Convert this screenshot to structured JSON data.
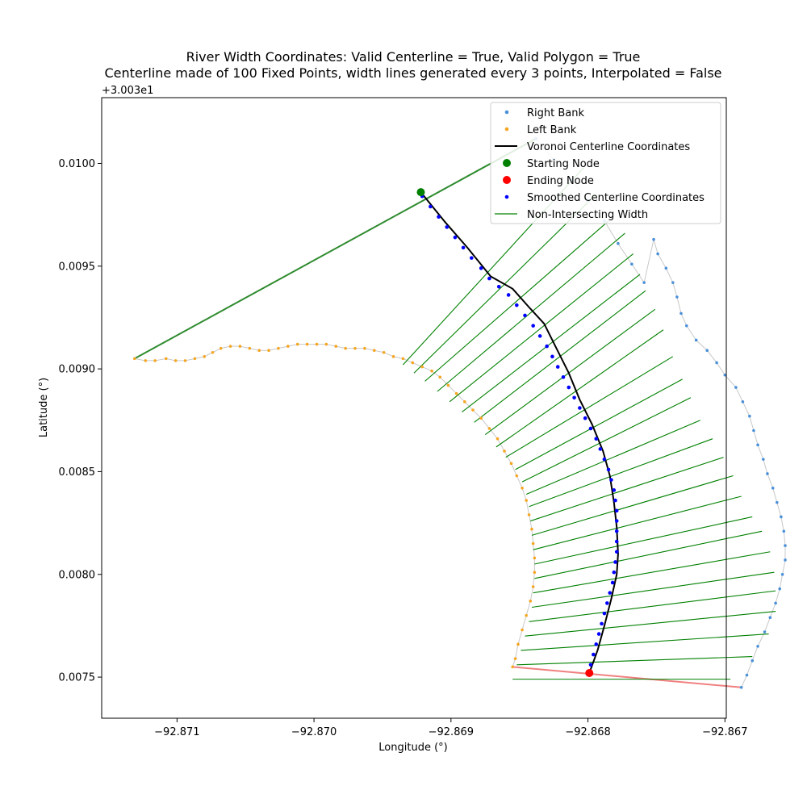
{
  "chart_data": {
    "type": "scatter",
    "title_line1": "River Width Coordinates: Valid Centerline = True, Valid Polygon = True",
    "title_line2": "Centerline made of 100 Fixed Points, width lines generated every 3 points, Interpolated = False",
    "xlabel": "Longitude (°)",
    "ylabel": "Latitude (°)",
    "y_offset_label": "+3.003e1",
    "xlim": [
      -92.87155,
      -92.86699
    ],
    "ylim": [
      0.0073,
      0.01032
    ],
    "xticks": [
      {
        "value": -92.871,
        "label": "−92.871"
      },
      {
        "value": -92.87,
        "label": "−92.870"
      },
      {
        "value": -92.869,
        "label": "−92.869"
      },
      {
        "value": -92.868,
        "label": "−92.868"
      },
      {
        "value": -92.867,
        "label": "−92.867"
      }
    ],
    "yticks": [
      {
        "value": 0.0075,
        "label": "0.0075"
      },
      {
        "value": 0.008,
        "label": "0.0080"
      },
      {
        "value": 0.0085,
        "label": "0.0085"
      },
      {
        "value": 0.009,
        "label": "0.0090"
      },
      {
        "value": 0.0095,
        "label": "0.0095"
      },
      {
        "value": 0.01,
        "label": "0.0100"
      }
    ],
    "grid": false,
    "legend_position": "top-right",
    "colors": {
      "right_bank": "#4a90d9",
      "left_bank": "#f5a623",
      "centerline": "#000000",
      "start_node": "#008000",
      "end_node": "#ff0000",
      "smoothed": "#0000ff",
      "width_line": "#008000",
      "bank_outline": "#c8c8c8",
      "top_closure": "#2e8b2e",
      "bottom_closure": "#f08080"
    },
    "legend": [
      {
        "key": "right_bank",
        "label": "Right Bank",
        "marker": "dot-small"
      },
      {
        "key": "left_bank",
        "label": "Left Bank",
        "marker": "dot-small"
      },
      {
        "key": "centerline",
        "label": "Voronoi Centerline Coordinates",
        "marker": "line-thick"
      },
      {
        "key": "start_node",
        "label": "Starting Node",
        "marker": "dot-large"
      },
      {
        "key": "end_node",
        "label": "Ending Node",
        "marker": "dot-large"
      },
      {
        "key": "smoothed",
        "label": "Smoothed Centerline Coordinates",
        "marker": "dot-small"
      },
      {
        "key": "width_line",
        "label": "Non-Intersecting Width",
        "marker": "line-thin"
      }
    ],
    "right_bank": [
      [
        -92.86838,
        0.01012
      ],
      [
        -92.86825,
        0.01002
      ],
      [
        -92.86812,
        0.00992
      ],
      [
        -92.868,
        0.00982
      ],
      [
        -92.86788,
        0.00972
      ],
      [
        -92.86778,
        0.00961
      ],
      [
        -92.86768,
        0.00951
      ],
      [
        -92.86759,
        0.00942
      ],
      [
        -92.86752,
        0.00963
      ],
      [
        -92.86749,
        0.00956
      ],
      [
        -92.86743,
        0.00949
      ],
      [
        -92.86738,
        0.00942
      ],
      [
        -92.86735,
        0.00935
      ],
      [
        -92.86732,
        0.00927
      ],
      [
        -92.86728,
        0.00921
      ],
      [
        -92.86721,
        0.00914
      ],
      [
        -92.86713,
        0.00909
      ],
      [
        -92.86706,
        0.00903
      ],
      [
        -92.867,
        0.00897
      ],
      [
        -92.86692,
        0.00891
      ],
      [
        -92.86687,
        0.00884
      ],
      [
        -92.86682,
        0.00877
      ],
      [
        -92.86679,
        0.0087
      ],
      [
        -92.86676,
        0.00863
      ],
      [
        -92.86672,
        0.00856
      ],
      [
        -92.86669,
        0.00849
      ],
      [
        -92.86665,
        0.00842
      ],
      [
        -92.86662,
        0.00835
      ],
      [
        -92.86659,
        0.00828
      ],
      [
        -92.86657,
        0.00821
      ],
      [
        -92.86656,
        0.00814
      ],
      [
        -92.86656,
        0.00807
      ],
      [
        -92.86658,
        0.008
      ],
      [
        -92.8666,
        0.00793
      ],
      [
        -92.86663,
        0.00786
      ],
      [
        -92.86667,
        0.00779
      ],
      [
        -92.86671,
        0.00772
      ],
      [
        -92.86676,
        0.00765
      ],
      [
        -92.8668,
        0.00758
      ],
      [
        -92.86684,
        0.00751
      ],
      [
        -92.86688,
        0.00745
      ]
    ],
    "left_bank": [
      [
        -92.87131,
        0.00905
      ],
      [
        -92.87123,
        0.00904
      ],
      [
        -92.87116,
        0.00904
      ],
      [
        -92.87108,
        0.00905
      ],
      [
        -92.87101,
        0.00904
      ],
      [
        -92.87094,
        0.00904
      ],
      [
        -92.87087,
        0.00905
      ],
      [
        -92.8708,
        0.00906
      ],
      [
        -92.87074,
        0.00908
      ],
      [
        -92.87068,
        0.0091
      ],
      [
        -92.87061,
        0.00911
      ],
      [
        -92.87054,
        0.00911
      ],
      [
        -92.87047,
        0.0091
      ],
      [
        -92.8704,
        0.00909
      ],
      [
        -92.87033,
        0.00909
      ],
      [
        -92.87026,
        0.0091
      ],
      [
        -92.87019,
        0.00911
      ],
      [
        -92.87012,
        0.00912
      ],
      [
        -92.87005,
        0.00912
      ],
      [
        -92.86998,
        0.00912
      ],
      [
        -92.86991,
        0.00912
      ],
      [
        -92.86984,
        0.00911
      ],
      [
        -92.86977,
        0.0091
      ],
      [
        -92.8697,
        0.0091
      ],
      [
        -92.86963,
        0.0091
      ],
      [
        -92.86956,
        0.00909
      ],
      [
        -92.86949,
        0.00908
      ],
      [
        -92.86942,
        0.00906
      ],
      [
        -92.86935,
        0.00905
      ],
      [
        -92.86928,
        0.00903
      ],
      [
        -92.86921,
        0.00901
      ],
      [
        -92.86914,
        0.00899
      ],
      [
        -92.86908,
        0.00896
      ],
      [
        -92.86902,
        0.00892
      ],
      [
        -92.86896,
        0.00888
      ],
      [
        -92.8689,
        0.00884
      ],
      [
        -92.86884,
        0.0088
      ],
      [
        -92.86878,
        0.00876
      ],
      [
        -92.86872,
        0.00871
      ],
      [
        -92.86866,
        0.00866
      ],
      [
        -92.86861,
        0.0086
      ],
      [
        -92.86856,
        0.00854
      ],
      [
        -92.86852,
        0.00848
      ],
      [
        -92.86848,
        0.00842
      ],
      [
        -92.86845,
        0.00836
      ],
      [
        -92.86843,
        0.00829
      ],
      [
        -92.86841,
        0.00822
      ],
      [
        -92.8684,
        0.00815
      ],
      [
        -92.86839,
        0.00808
      ],
      [
        -92.86839,
        0.00801
      ],
      [
        -92.8684,
        0.00794
      ],
      [
        -92.86842,
        0.00787
      ],
      [
        -92.86845,
        0.0078
      ],
      [
        -92.86848,
        0.00773
      ],
      [
        -92.86851,
        0.00766
      ],
      [
        -92.86853,
        0.00759
      ],
      [
        -92.86855,
        0.00755
      ]
    ],
    "centerline": [
      [
        -92.86922,
        0.00986
      ],
      [
        -92.86905,
        0.00972
      ],
      [
        -92.86888,
        0.00959
      ],
      [
        -92.86871,
        0.00945
      ],
      [
        -92.86855,
        0.00939
      ],
      [
        -92.86843,
        0.0093
      ],
      [
        -92.86832,
        0.00922
      ],
      [
        -92.86823,
        0.0091
      ],
      [
        -92.86814,
        0.00898
      ],
      [
        -92.86806,
        0.00885
      ],
      [
        -92.86797,
        0.00873
      ],
      [
        -92.86789,
        0.0086
      ],
      [
        -92.86784,
        0.00848
      ],
      [
        -92.86781,
        0.00835
      ],
      [
        -92.86779,
        0.00823
      ],
      [
        -92.86778,
        0.0081
      ],
      [
        -92.86779,
        0.008
      ],
      [
        -92.86783,
        0.00788
      ],
      [
        -92.86788,
        0.00775
      ],
      [
        -92.86793,
        0.00763
      ],
      [
        -92.86799,
        0.00752
      ]
    ],
    "start_node": [
      -92.86922,
      0.00986
    ],
    "end_node": [
      -92.86799,
      0.00752
    ],
    "smoothed": [
      [
        -92.86921,
        0.00984
      ],
      [
        -92.86915,
        0.00979
      ],
      [
        -92.86909,
        0.00974
      ],
      [
        -92.86903,
        0.00969
      ],
      [
        -92.86897,
        0.00964
      ],
      [
        -92.86891,
        0.00959
      ],
      [
        -92.86885,
        0.00954
      ],
      [
        -92.86878,
        0.00949
      ],
      [
        -92.86872,
        0.00944
      ],
      [
        -92.86865,
        0.0094
      ],
      [
        -92.86858,
        0.00936
      ],
      [
        -92.86852,
        0.00931
      ],
      [
        -92.86846,
        0.00926
      ],
      [
        -92.8684,
        0.00921
      ],
      [
        -92.86835,
        0.00916
      ],
      [
        -92.8683,
        0.00911
      ],
      [
        -92.86826,
        0.00906
      ],
      [
        -92.86822,
        0.00901
      ],
      [
        -92.86818,
        0.00896
      ],
      [
        -92.86814,
        0.00891
      ],
      [
        -92.8681,
        0.00886
      ],
      [
        -92.86806,
        0.00881
      ],
      [
        -92.86802,
        0.00876
      ],
      [
        -92.86798,
        0.00871
      ],
      [
        -92.86794,
        0.00866
      ],
      [
        -92.86791,
        0.00861
      ],
      [
        -92.86788,
        0.00856
      ],
      [
        -92.86785,
        0.00851
      ],
      [
        -92.86783,
        0.00846
      ],
      [
        -92.86781,
        0.00841
      ],
      [
        -92.8678,
        0.00836
      ],
      [
        -92.86779,
        0.00831
      ],
      [
        -92.86779,
        0.00826
      ],
      [
        -92.86779,
        0.00821
      ],
      [
        -92.86779,
        0.00816
      ],
      [
        -92.86779,
        0.00811
      ],
      [
        -92.8678,
        0.00806
      ],
      [
        -92.86781,
        0.00801
      ],
      [
        -92.86782,
        0.00796
      ],
      [
        -92.86784,
        0.00791
      ],
      [
        -92.86786,
        0.00786
      ],
      [
        -92.86788,
        0.00781
      ],
      [
        -92.8679,
        0.00776
      ],
      [
        -92.86792,
        0.00771
      ],
      [
        -92.86794,
        0.00766
      ],
      [
        -92.86796,
        0.00761
      ],
      [
        -92.86798,
        0.00756
      ],
      [
        -92.868,
        0.00752
      ]
    ],
    "width_lines": [
      [
        [
          -92.86935,
          0.00902
        ],
        [
          -92.86803,
          0.00998
        ]
      ],
      [
        [
          -92.86927,
          0.00898
        ],
        [
          -92.86794,
          0.00985
        ]
      ],
      [
        [
          -92.86919,
          0.00894
        ],
        [
          -92.86785,
          0.00972
        ]
      ],
      [
        [
          -92.8691,
          0.00889
        ],
        [
          -92.86773,
          0.00966
        ]
      ],
      [
        [
          -92.86901,
          0.00884
        ],
        [
          -92.86767,
          0.00956
        ]
      ],
      [
        [
          -92.86892,
          0.00879
        ],
        [
          -92.86762,
          0.00946
        ]
      ],
      [
        [
          -92.86883,
          0.00874
        ],
        [
          -92.86758,
          0.00938
        ]
      ],
      [
        [
          -92.86875,
          0.00868
        ],
        [
          -92.86751,
          0.00929
        ]
      ],
      [
        [
          -92.86867,
          0.00862
        ],
        [
          -92.86745,
          0.00919
        ]
      ],
      [
        [
          -92.8686,
          0.00857
        ],
        [
          -92.86738,
          0.00906
        ]
      ],
      [
        [
          -92.86853,
          0.00851
        ],
        [
          -92.86731,
          0.00895
        ]
      ],
      [
        [
          -92.86848,
          0.00845
        ],
        [
          -92.86725,
          0.00886
        ]
      ],
      [
        [
          -92.86845,
          0.00839
        ],
        [
          -92.86718,
          0.00875
        ]
      ],
      [
        [
          -92.86843,
          0.00833
        ],
        [
          -92.86709,
          0.00866
        ]
      ],
      [
        [
          -92.86842,
          0.00826
        ],
        [
          -92.86701,
          0.00857
        ]
      ],
      [
        [
          -92.86841,
          0.00819
        ],
        [
          -92.86694,
          0.00848
        ]
      ],
      [
        [
          -92.8684,
          0.00812
        ],
        [
          -92.86688,
          0.00838
        ]
      ],
      [
        [
          -92.86839,
          0.00805
        ],
        [
          -92.8668,
          0.00828
        ]
      ],
      [
        [
          -92.86839,
          0.00798
        ],
        [
          -92.86673,
          0.00821
        ]
      ],
      [
        [
          -92.8684,
          0.00791
        ],
        [
          -92.86667,
          0.00811
        ]
      ],
      [
        [
          -92.86841,
          0.00784
        ],
        [
          -92.86664,
          0.00801
        ]
      ],
      [
        [
          -92.86843,
          0.00777
        ],
        [
          -92.86663,
          0.00792
        ]
      ],
      [
        [
          -92.86846,
          0.0077
        ],
        [
          -92.86663,
          0.00782
        ]
      ],
      [
        [
          -92.86849,
          0.00763
        ],
        [
          -92.86668,
          0.00771
        ]
      ],
      [
        [
          -92.86852,
          0.00756
        ],
        [
          -92.8668,
          0.0076
        ]
      ],
      [
        [
          -92.86855,
          0.00749
        ],
        [
          -92.86696,
          0.00749
        ]
      ]
    ],
    "top_closure": [
      [
        -92.87131,
        0.00905
      ],
      [
        -92.86838,
        0.01012
      ]
    ],
    "bottom_closure": [
      [
        -92.86855,
        0.00755
      ],
      [
        -92.86688,
        0.00745
      ]
    ]
  }
}
